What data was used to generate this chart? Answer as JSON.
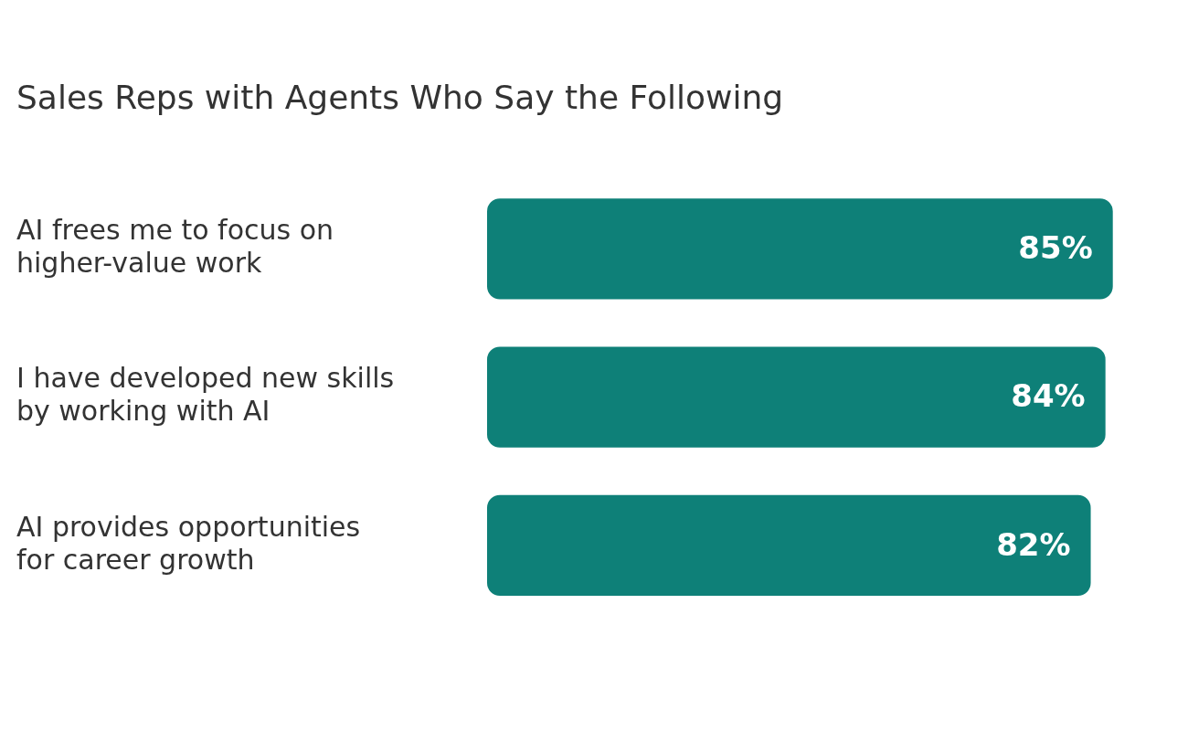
{
  "chart_data": {
    "type": "bar",
    "orientation": "horizontal",
    "title": "Sales Reps with Agents Who Say the Following",
    "categories": [
      "AI frees me to focus on higher-value work",
      "I have developed new skills by working with AI",
      "AI provides opportunities for career growth"
    ],
    "values": [
      85,
      84,
      82
    ],
    "value_labels": [
      "85%",
      "84%",
      "82%"
    ],
    "color": "#0e8078",
    "grid": false,
    "legend": false,
    "tick_labels": "y"
  }
}
